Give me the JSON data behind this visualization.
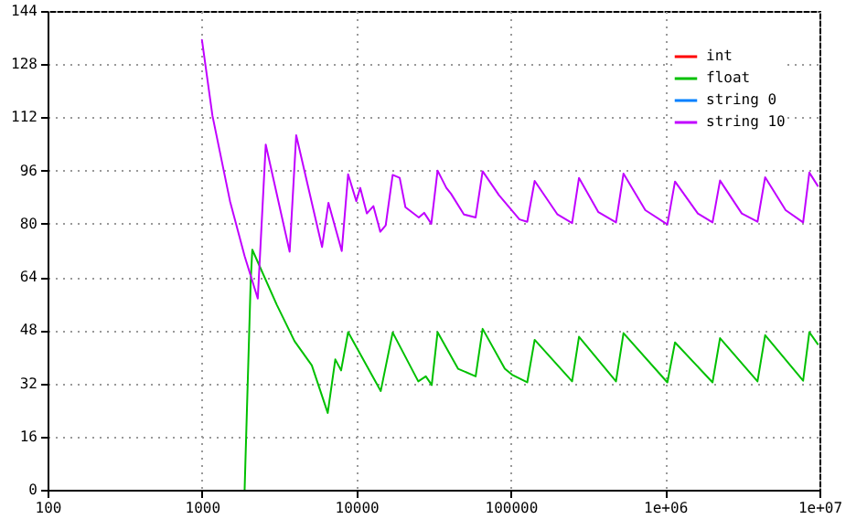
{
  "chart_data": {
    "type": "line",
    "log": "x",
    "grid": true,
    "legend": "top right",
    "xlim": [
      100,
      10000000
    ],
    "xticks": [
      100,
      1000,
      10000,
      100000,
      {
        "value": 1000000,
        "label": "1e+06"
      },
      {
        "value": 10000000,
        "label": "1e+07"
      }
    ],
    "ylim": [
      0,
      144
    ],
    "yticks": [
      0,
      16,
      32,
      48,
      64,
      80,
      96,
      112,
      128,
      144
    ],
    "series": [
      {
        "name": "int",
        "color": "#ff0000"
      },
      {
        "name": "float",
        "color": "#00c000",
        "x": [
          1890,
          2070,
          2120,
          3050,
          3980,
          5150,
          6530,
          7310,
          7970,
          8850,
          14400,
          17200,
          25200,
          28200,
          30800,
          33600,
          45600,
          59300,
          65800,
          91600,
          102000,
          128000,
          143000,
          250000,
          277000,
          481000,
          538000,
          1035000,
          1160000,
          2030000,
          2270000,
          3970000,
          4450000,
          7840000,
          8600000,
          9750000
        ],
        "values": [
          0,
          63,
          72.2,
          55.7,
          44.7,
          37.4,
          23.1,
          39.2,
          35.9,
          47.4,
          29.7,
          47.3,
          32.6,
          34.1,
          31.5,
          47.4,
          36.4,
          34.1,
          48.4,
          36.4,
          34.6,
          32.3,
          45.1,
          32.6,
          46,
          32.6,
          47.1,
          32.3,
          44.3,
          32.3,
          45.6,
          32.6,
          46.5,
          32.8,
          47.4,
          43.8
        ]
      },
      {
        "name": "string 0",
        "color": "#0080ff"
      },
      {
        "name": "string 10",
        "color": "#c000ff",
        "x": [
          1000,
          1170,
          1520,
          1890,
          2300,
          2590,
          3700,
          4080,
          6000,
          6600,
          8050,
          8850,
          10000,
          10600,
          11700,
          12900,
          14300,
          15500,
          17200,
          19100,
          20800,
          25400,
          27500,
          30600,
          33600,
          38300,
          41100,
          49800,
          59300,
          65800,
          84000,
          114000,
          128000,
          143000,
          201000,
          250000,
          277000,
          370000,
          481000,
          538000,
          745000,
          1035000,
          1160000,
          1630000,
          2030000,
          2270000,
          3140000,
          3970000,
          4450000,
          6040000,
          7840000,
          8600000,
          9750000
        ],
        "values": [
          135.3,
          112.5,
          86.8,
          70.3,
          57.5,
          103.8,
          71.6,
          106.6,
          73,
          86.3,
          71.8,
          94.9,
          86.8,
          90.8,
          83.1,
          85.3,
          77.6,
          79.5,
          94.7,
          93.8,
          85,
          81.9,
          83.3,
          80,
          96,
          90.8,
          89,
          82.8,
          81.9,
          95.8,
          88.6,
          81.3,
          80.6,
          92.9,
          82.8,
          80.2,
          93.8,
          83.5,
          80.4,
          95.1,
          84.1,
          79.8,
          92.7,
          83.1,
          80.4,
          93,
          83.1,
          80.6,
          94,
          84.1,
          80.4,
          95.4,
          91.4
        ]
      }
    ]
  }
}
